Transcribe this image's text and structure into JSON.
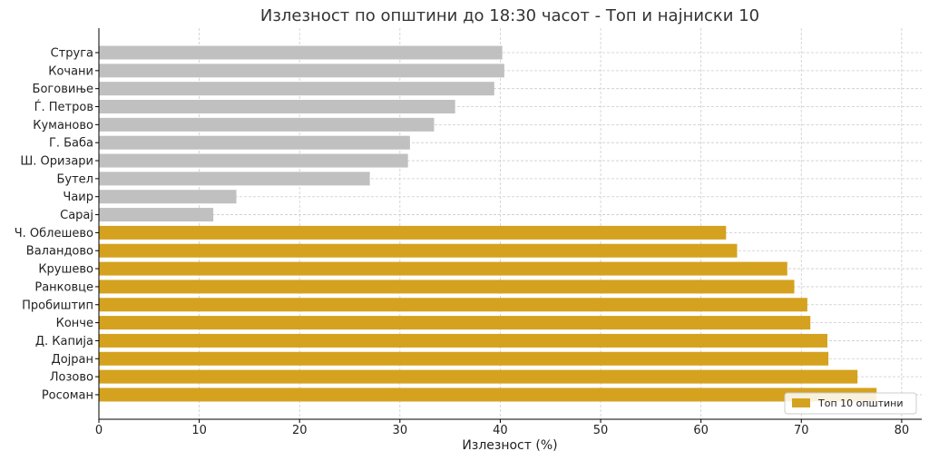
{
  "chart_data": {
    "type": "bar",
    "orientation": "horizontal",
    "title": "Излезност по општини до 18:30 часот - Топ и најниски 10",
    "xlabel": "Излезност (%)",
    "ylabel": "",
    "xlim": [
      0,
      82
    ],
    "xticks": [
      0,
      10,
      20,
      30,
      40,
      50,
      60,
      70,
      80
    ],
    "grid": true,
    "legend": {
      "position": "bottom-right",
      "entries": [
        "Топ 10 општини"
      ]
    },
    "colors": {
      "top": "#D4A21F",
      "bottom": "#C0C0C0"
    },
    "categories": [
      "Струга",
      "Кочани",
      "Боговиње",
      "Ѓ. Петров",
      "Куманово",
      "Г. Баба",
      "Ш. Оризари",
      "Бутел",
      "Чаир",
      "Сарај",
      "Ч. Облешево",
      "Валандово",
      "Крушево",
      "Ранковце",
      "Пробиштип",
      "Конче",
      "Д. Капија",
      "Дојран",
      "Лозово",
      "Росоман"
    ],
    "values": [
      40.2,
      40.4,
      39.4,
      35.5,
      33.4,
      31.0,
      30.8,
      27.0,
      13.7,
      11.4,
      62.5,
      63.6,
      68.6,
      69.3,
      70.6,
      70.9,
      72.6,
      72.7,
      75.6,
      77.5
    ],
    "groups": [
      "bottom",
      "bottom",
      "bottom",
      "bottom",
      "bottom",
      "bottom",
      "bottom",
      "bottom",
      "bottom",
      "bottom",
      "top",
      "top",
      "top",
      "top",
      "top",
      "top",
      "top",
      "top",
      "top",
      "top"
    ]
  }
}
